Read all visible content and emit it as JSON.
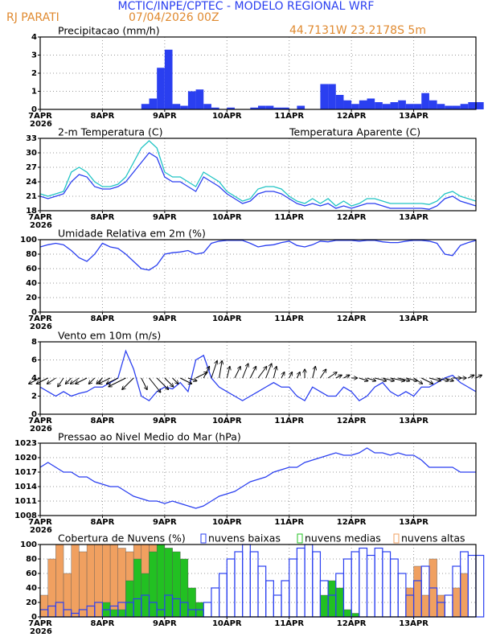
{
  "header": {
    "title": "MCTIC/INPE/CPTEC - MODELO REGIONAL WRF",
    "location": "RJ PARATI",
    "datetime": "07/04/2026 00Z",
    "coords": "44.7131W 23.2178S 5m"
  },
  "chart_data": [
    {
      "type": "bar",
      "title": "Precipitacao (mm/h)",
      "color": "#2a3ff0",
      "grid": true,
      "year": "2026",
      "x": [
        0,
        3,
        6,
        9,
        12,
        15,
        18,
        21,
        24,
        27,
        30,
        33,
        36,
        39,
        42,
        45,
        48,
        51,
        54,
        57,
        60,
        63,
        66,
        69,
        72,
        75,
        78,
        81,
        84,
        87,
        90,
        93,
        96,
        99,
        102,
        105,
        108,
        111,
        114,
        117,
        120,
        123,
        126,
        129,
        132,
        135,
        138,
        141,
        144,
        147,
        150,
        153,
        156,
        159,
        162,
        165,
        168
      ],
      "values": [
        0,
        0,
        0,
        0,
        0,
        0,
        0,
        0,
        0,
        0,
        0,
        0,
        0,
        0.3,
        0.6,
        2.3,
        3.3,
        0.3,
        0.2,
        1.0,
        1.1,
        0.3,
        0.1,
        0,
        0.1,
        0,
        0,
        0.1,
        0.2,
        0.2,
        0.1,
        0.1,
        0,
        0.2,
        0,
        0,
        1.4,
        1.4,
        0.8,
        0.5,
        0.3,
        0.5,
        0.6,
        0.4,
        0.3,
        0.4,
        0.5,
        0.3,
        0.3,
        0.9,
        0.5,
        0.3,
        0.2,
        0.2,
        0.3,
        0.4,
        0.4
      ],
      "xlim": [
        0,
        168
      ],
      "xticks": [
        {
          "value": 0,
          "label": "7APR"
        },
        {
          "value": 24,
          "label": "8APR"
        },
        {
          "value": 48,
          "label": "9APR"
        },
        {
          "value": 72,
          "label": "10APR"
        },
        {
          "value": 96,
          "label": "11APR"
        },
        {
          "value": 120,
          "label": "12APR"
        },
        {
          "value": 144,
          "label": "13APR"
        }
      ],
      "ylim": [
        0,
        4
      ],
      "yticks": [
        0,
        1,
        2,
        3,
        4
      ]
    },
    {
      "type": "line",
      "grid": true,
      "year": "2026",
      "x": [
        0,
        3,
        6,
        9,
        12,
        15,
        18,
        21,
        24,
        27,
        30,
        33,
        36,
        39,
        42,
        45,
        48,
        51,
        54,
        57,
        60,
        63,
        66,
        69,
        72,
        75,
        78,
        81,
        84,
        87,
        90,
        93,
        96,
        99,
        102,
        105,
        108,
        111,
        114,
        117,
        120,
        123,
        126,
        129,
        132,
        135,
        138,
        141,
        144,
        147,
        150,
        153,
        156,
        159,
        162,
        165,
        168
      ],
      "series": [
        {
          "name": "2-m Temperatura (C)",
          "color": "#2a3ff0",
          "values": [
            21,
            20.5,
            21,
            21.5,
            24,
            25.5,
            25,
            23,
            22.5,
            22.5,
            23,
            24,
            26,
            28,
            30,
            29,
            25,
            24,
            24,
            23,
            22,
            25,
            24,
            23,
            21.5,
            20.5,
            19.5,
            20,
            21.5,
            22,
            22,
            21.5,
            20.5,
            19.5,
            19,
            19.5,
            19,
            19.5,
            18.5,
            19,
            18.5,
            19,
            19.5,
            19.5,
            19,
            18.5,
            18.5,
            18.5,
            18.5,
            18.5,
            18.3,
            19,
            20.5,
            21,
            20,
            19.5,
            19
          ]
        },
        {
          "name": "Temperatura Aparente (C)",
          "color": "#20c4c4",
          "values": [
            21.5,
            21,
            21.5,
            22,
            26,
            27,
            26,
            24,
            23,
            23,
            23.5,
            25,
            28,
            31,
            32.5,
            31,
            26,
            25,
            25,
            24,
            23,
            26,
            25,
            24,
            22,
            21,
            20,
            20.5,
            22.5,
            23,
            23,
            22.5,
            21,
            20,
            19.5,
            20.5,
            19.5,
            20.5,
            19,
            20,
            19,
            19.5,
            20.5,
            20.5,
            20,
            19.5,
            19.5,
            19.5,
            19.5,
            19.5,
            19.3,
            20,
            21.5,
            22,
            21,
            20.5,
            20
          ]
        }
      ],
      "xlim": [
        0,
        168
      ],
      "xticks": [
        {
          "value": 0,
          "label": "7APR"
        },
        {
          "value": 24,
          "label": "8APR"
        },
        {
          "value": 48,
          "label": "9APR"
        },
        {
          "value": 72,
          "label": "10APR"
        },
        {
          "value": 96,
          "label": "11APR"
        },
        {
          "value": 120,
          "label": "12APR"
        },
        {
          "value": 144,
          "label": "13APR"
        }
      ],
      "ylim": [
        18,
        33
      ],
      "yticks": [
        18,
        21,
        24,
        27,
        30,
        33
      ]
    },
    {
      "type": "line",
      "title": "Umidade Relativa em 2m (%)",
      "color": "#2a3ff0",
      "grid": true,
      "year": "2026",
      "x": [
        0,
        3,
        6,
        9,
        12,
        15,
        18,
        21,
        24,
        27,
        30,
        33,
        36,
        39,
        42,
        45,
        48,
        51,
        54,
        57,
        60,
        63,
        66,
        69,
        72,
        75,
        78,
        81,
        84,
        87,
        90,
        93,
        96,
        99,
        102,
        105,
        108,
        111,
        114,
        117,
        120,
        123,
        126,
        129,
        132,
        135,
        138,
        141,
        144,
        147,
        150,
        153,
        156,
        159,
        162,
        165,
        168
      ],
      "values": [
        90,
        93,
        95,
        93,
        85,
        75,
        70,
        80,
        95,
        90,
        88,
        80,
        70,
        60,
        58,
        65,
        80,
        82,
        83,
        85,
        80,
        82,
        95,
        98,
        99,
        99,
        99,
        95,
        90,
        92,
        93,
        96,
        98,
        92,
        90,
        93,
        98,
        97,
        99,
        99,
        99,
        98,
        99,
        99,
        97,
        96,
        96,
        98,
        99,
        99,
        98,
        95,
        80,
        78,
        92,
        96,
        99
      ],
      "xlim": [
        0,
        168
      ],
      "xticks": [
        {
          "value": 0,
          "label": "7APR"
        },
        {
          "value": 24,
          "label": "8APR"
        },
        {
          "value": 48,
          "label": "9APR"
        },
        {
          "value": 72,
          "label": "10APR"
        },
        {
          "value": 96,
          "label": "11APR"
        },
        {
          "value": 120,
          "label": "12APR"
        },
        {
          "value": 144,
          "label": "13APR"
        }
      ],
      "ylim": [
        0,
        100
      ],
      "yticks": [
        0,
        20,
        40,
        60,
        80,
        100
      ]
    },
    {
      "type": "line",
      "title": "Vento em 10m (m/s)",
      "color": "#2a3ff0",
      "grid": true,
      "year": "2026",
      "x": [
        0,
        3,
        6,
        9,
        12,
        15,
        18,
        21,
        24,
        27,
        30,
        33,
        36,
        39,
        42,
        45,
        48,
        51,
        54,
        57,
        60,
        63,
        66,
        69,
        72,
        75,
        78,
        81,
        84,
        87,
        90,
        93,
        96,
        99,
        102,
        105,
        108,
        111,
        114,
        117,
        120,
        123,
        126,
        129,
        132,
        135,
        138,
        141,
        144,
        147,
        150,
        153,
        156,
        159,
        162,
        165,
        168
      ],
      "values": [
        3,
        2.5,
        2,
        2.5,
        2,
        2.3,
        2.5,
        3,
        3,
        3.5,
        4,
        7,
        5,
        2,
        1.5,
        2.5,
        3,
        2.8,
        3.5,
        2.5,
        6,
        6.5,
        4,
        3,
        2.5,
        2,
        1.5,
        2,
        2.5,
        3,
        3.5,
        3,
        3,
        2,
        1.5,
        3,
        2.5,
        2,
        2,
        3,
        2.5,
        1.5,
        2,
        3,
        3.5,
        2.5,
        2,
        2.5,
        2,
        3,
        3,
        3.5,
        4,
        4.3,
        3.5,
        3,
        2.5
      ],
      "vectors": {
        "color": "#000000",
        "u": [
          -2,
          -2,
          -1.5,
          -1,
          -1,
          -1.5,
          -2,
          -1,
          -1,
          -2,
          -2,
          -3,
          -2,
          1,
          2,
          2,
          1.5,
          1,
          2,
          1.5,
          2,
          1,
          1,
          0.5,
          0.5,
          1,
          1,
          1,
          1.5,
          1,
          0.5,
          0.5,
          0.5,
          0.5,
          0,
          0.5,
          1,
          1.5,
          1,
          1,
          1,
          1.5,
          1.5,
          2,
          2,
          2.5,
          2,
          2,
          1.5,
          2,
          2,
          2,
          1.5,
          1.5,
          1,
          1,
          1
        ],
        "v": [
          -1,
          -1,
          -1,
          -1.5,
          -1,
          -1,
          -1,
          -1,
          -1,
          -1,
          -1,
          -1.5,
          -2,
          -2,
          -2.5,
          -2,
          -1.5,
          -1,
          -1,
          -0.5,
          1,
          2,
          3,
          3,
          2,
          2,
          2.5,
          2,
          2,
          2.5,
          2,
          1,
          1,
          1,
          1.5,
          2,
          1.5,
          1,
          0.5,
          0.5,
          0,
          -0.5,
          -0.5,
          -0.5,
          -0.5,
          -0.5,
          -0.5,
          -0.5,
          -1,
          -1,
          -0.5,
          -0.5,
          -0.5,
          0,
          0,
          0.5,
          0.5
        ]
      },
      "xlim": [
        0,
        168
      ],
      "xticks": [
        {
          "value": 0,
          "label": "7APR"
        },
        {
          "value": 24,
          "label": "8APR"
        },
        {
          "value": 48,
          "label": "9APR"
        },
        {
          "value": 72,
          "label": "10APR"
        },
        {
          "value": 96,
          "label": "11APR"
        },
        {
          "value": 120,
          "label": "12APR"
        },
        {
          "value": 144,
          "label": "13APR"
        }
      ],
      "ylim": [
        0,
        8
      ],
      "yticks": [
        0,
        2,
        4,
        6,
        8
      ]
    },
    {
      "type": "line",
      "title": "Pressao ao Nivel Medio do Mar (hPa)",
      "color": "#2a3ff0",
      "grid": true,
      "year": "2026",
      "x": [
        0,
        3,
        6,
        9,
        12,
        15,
        18,
        21,
        24,
        27,
        30,
        33,
        36,
        39,
        42,
        45,
        48,
        51,
        54,
        57,
        60,
        63,
        66,
        69,
        72,
        75,
        78,
        81,
        84,
        87,
        90,
        93,
        96,
        99,
        102,
        105,
        108,
        111,
        114,
        117,
        120,
        123,
        126,
        129,
        132,
        135,
        138,
        141,
        144,
        147,
        150,
        153,
        156,
        159,
        162,
        165,
        168
      ],
      "values": [
        1018,
        1019,
        1018,
        1017,
        1017,
        1016,
        1016,
        1015,
        1014.5,
        1014,
        1014,
        1013,
        1012,
        1011.5,
        1011,
        1011,
        1010.5,
        1011,
        1010.5,
        1010,
        1009.5,
        1010,
        1011,
        1012,
        1012.5,
        1013,
        1014,
        1015,
        1015.5,
        1016,
        1017,
        1017.5,
        1018,
        1018,
        1019,
        1019.5,
        1020,
        1020.5,
        1021,
        1020.5,
        1020.5,
        1021,
        1022,
        1021,
        1021,
        1020.5,
        1021,
        1020.5,
        1020.5,
        1019.5,
        1018,
        1018,
        1018,
        1018,
        1017,
        1017,
        1017
      ],
      "xlim": [
        0,
        168
      ],
      "xticks": [
        {
          "value": 0,
          "label": "7APR"
        },
        {
          "value": 24,
          "label": "8APR"
        },
        {
          "value": 48,
          "label": "9APR"
        },
        {
          "value": 72,
          "label": "10APR"
        },
        {
          "value": 96,
          "label": "11APR"
        },
        {
          "value": 120,
          "label": "12APR"
        },
        {
          "value": 144,
          "label": "13APR"
        }
      ],
      "ylim": [
        1008,
        1023
      ],
      "yticks": [
        1008,
        1011,
        1014,
        1017,
        1020,
        1023
      ]
    },
    {
      "type": "bar",
      "title": "Cobertura de Nuvens (%)",
      "grid": true,
      "year": "2026",
      "x": [
        0,
        3,
        6,
        9,
        12,
        15,
        18,
        21,
        24,
        27,
        30,
        33,
        36,
        39,
        42,
        45,
        48,
        51,
        54,
        57,
        60,
        63,
        66,
        69,
        72,
        75,
        78,
        81,
        84,
        87,
        90,
        93,
        96,
        99,
        102,
        105,
        108,
        111,
        114,
        117,
        120,
        123,
        126,
        129,
        132,
        135,
        138,
        141,
        144,
        147,
        150,
        153,
        156,
        159,
        162,
        165,
        168
      ],
      "series": [
        {
          "name": "nuvens baixas",
          "color": "#2a3ff0",
          "outline": true,
          "values": [
            10,
            15,
            20,
            10,
            5,
            10,
            15,
            20,
            10,
            15,
            20,
            20,
            25,
            30,
            20,
            10,
            30,
            25,
            20,
            10,
            10,
            20,
            40,
            60,
            80,
            90,
            100,
            90,
            70,
            50,
            30,
            50,
            80,
            95,
            100,
            90,
            50,
            30,
            60,
            80,
            90,
            95,
            85,
            95,
            90,
            80,
            60,
            30,
            50,
            70,
            40,
            20,
            30,
            70,
            90,
            85,
            85
          ]
        },
        {
          "name": "nuvens medias",
          "color": "#22c022",
          "outline": false,
          "values": [
            0,
            0,
            0,
            0,
            0,
            0,
            0,
            0,
            20,
            10,
            10,
            50,
            80,
            60,
            90,
            100,
            95,
            90,
            80,
            40,
            20,
            0,
            0,
            0,
            0,
            0,
            0,
            0,
            0,
            0,
            0,
            0,
            0,
            0,
            0,
            0,
            30,
            50,
            40,
            10,
            5,
            0,
            0,
            0,
            0,
            0,
            0,
            0,
            0,
            0,
            0,
            0,
            0,
            0,
            0,
            0,
            0
          ]
        },
        {
          "name": "nuvens altas",
          "color": "#f0a060",
          "outline": false,
          "values": [
            30,
            80,
            100,
            60,
            100,
            90,
            100,
            100,
            100,
            100,
            95,
            90,
            100,
            100,
            100,
            100,
            95,
            80,
            60,
            20,
            0,
            0,
            0,
            0,
            0,
            0,
            0,
            0,
            0,
            0,
            0,
            0,
            0,
            0,
            0,
            0,
            0,
            0,
            0,
            0,
            0,
            0,
            0,
            0,
            0,
            0,
            0,
            40,
            70,
            30,
            80,
            30,
            0,
            40,
            60,
            0,
            0
          ]
        }
      ],
      "xlim": [
        0,
        168
      ],
      "xticks": [
        {
          "value": 0,
          "label": "7APR"
        },
        {
          "value": 24,
          "label": "8APR"
        },
        {
          "value": 48,
          "label": "9APR"
        },
        {
          "value": 72,
          "label": "10APR"
        },
        {
          "value": 96,
          "label": "11APR"
        },
        {
          "value": 120,
          "label": "12APR"
        },
        {
          "value": 144,
          "label": "13APR"
        }
      ],
      "ylim": [
        0,
        100
      ],
      "yticks": [
        0,
        20,
        40,
        60,
        80,
        100
      ]
    }
  ]
}
